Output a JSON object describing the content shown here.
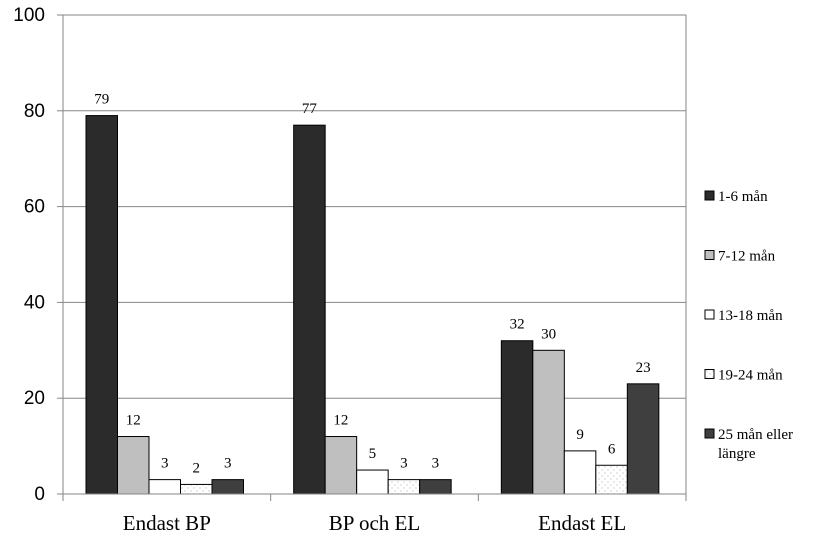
{
  "chart_data": {
    "type": "bar",
    "title": "",
    "xlabel": "",
    "ylabel": "",
    "ylim": [
      0,
      100
    ],
    "yticks": [
      0,
      20,
      40,
      60,
      80,
      100
    ],
    "grid": true,
    "legend_position": "right",
    "categories": [
      "Endast BP",
      "BP och EL",
      "Endast EL"
    ],
    "series": [
      {
        "name": "1-6 mån",
        "values": [
          79,
          77,
          32
        ],
        "color": "#2b2b2b"
      },
      {
        "name": "7-12 mån",
        "values": [
          12,
          12,
          30
        ],
        "color": "#bfbfbf"
      },
      {
        "name": "13-18 mån",
        "values": [
          3,
          5,
          9
        ],
        "color": "#ffffff"
      },
      {
        "name": "19-24 mån",
        "values": [
          2,
          3,
          6
        ],
        "color": "#ffffff",
        "pattern": "dotted"
      },
      {
        "name": "25 mån eller längre",
        "values": [
          3,
          3,
          23
        ],
        "color": "#3f3f3f"
      }
    ]
  }
}
